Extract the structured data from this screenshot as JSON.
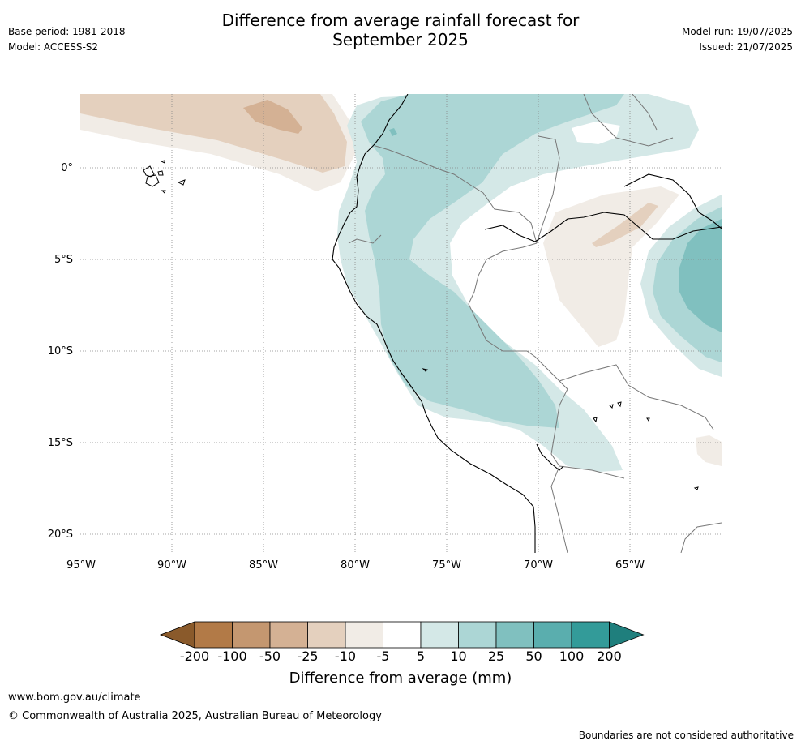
{
  "header": {
    "title_line1": "Difference from average rainfall forecast for",
    "title_line2": "September 2025",
    "base_period": "Base period: 1981-2018",
    "model": "Model: ACCESS-S2",
    "model_run": "Model run: 19/07/2025",
    "issued": "Issued: 21/07/2025"
  },
  "map": {
    "lat_labels": [
      "0°",
      "5°S",
      "10°S",
      "15°S",
      "20°S"
    ],
    "lon_labels": [
      "95°W",
      "90°W",
      "85°W",
      "80°W",
      "75°W",
      "70°W",
      "65°W"
    ]
  },
  "colorbar": {
    "labels": [
      "-200",
      "-100",
      "-50",
      "-25",
      "-10",
      "-5",
      "5",
      "10",
      "25",
      "50",
      "100",
      "200"
    ],
    "colors": [
      "#8a5a2b",
      "#b27a47",
      "#c49770",
      "#d4b194",
      "#e4d0be",
      "#f1ece6",
      "#ffffff",
      "#d4e8e7",
      "#acd6d5",
      "#80c0bf",
      "#5aaeae",
      "#339b99",
      "#1f7f7d"
    ],
    "title": "Difference from average (mm)"
  },
  "footer": {
    "url": "www.bom.gov.au/climate",
    "copyright": "© Commonwealth of Australia 2025, Australian Bureau of Meteorology",
    "disclaimer": "Boundaries are not considered authoritative"
  }
}
